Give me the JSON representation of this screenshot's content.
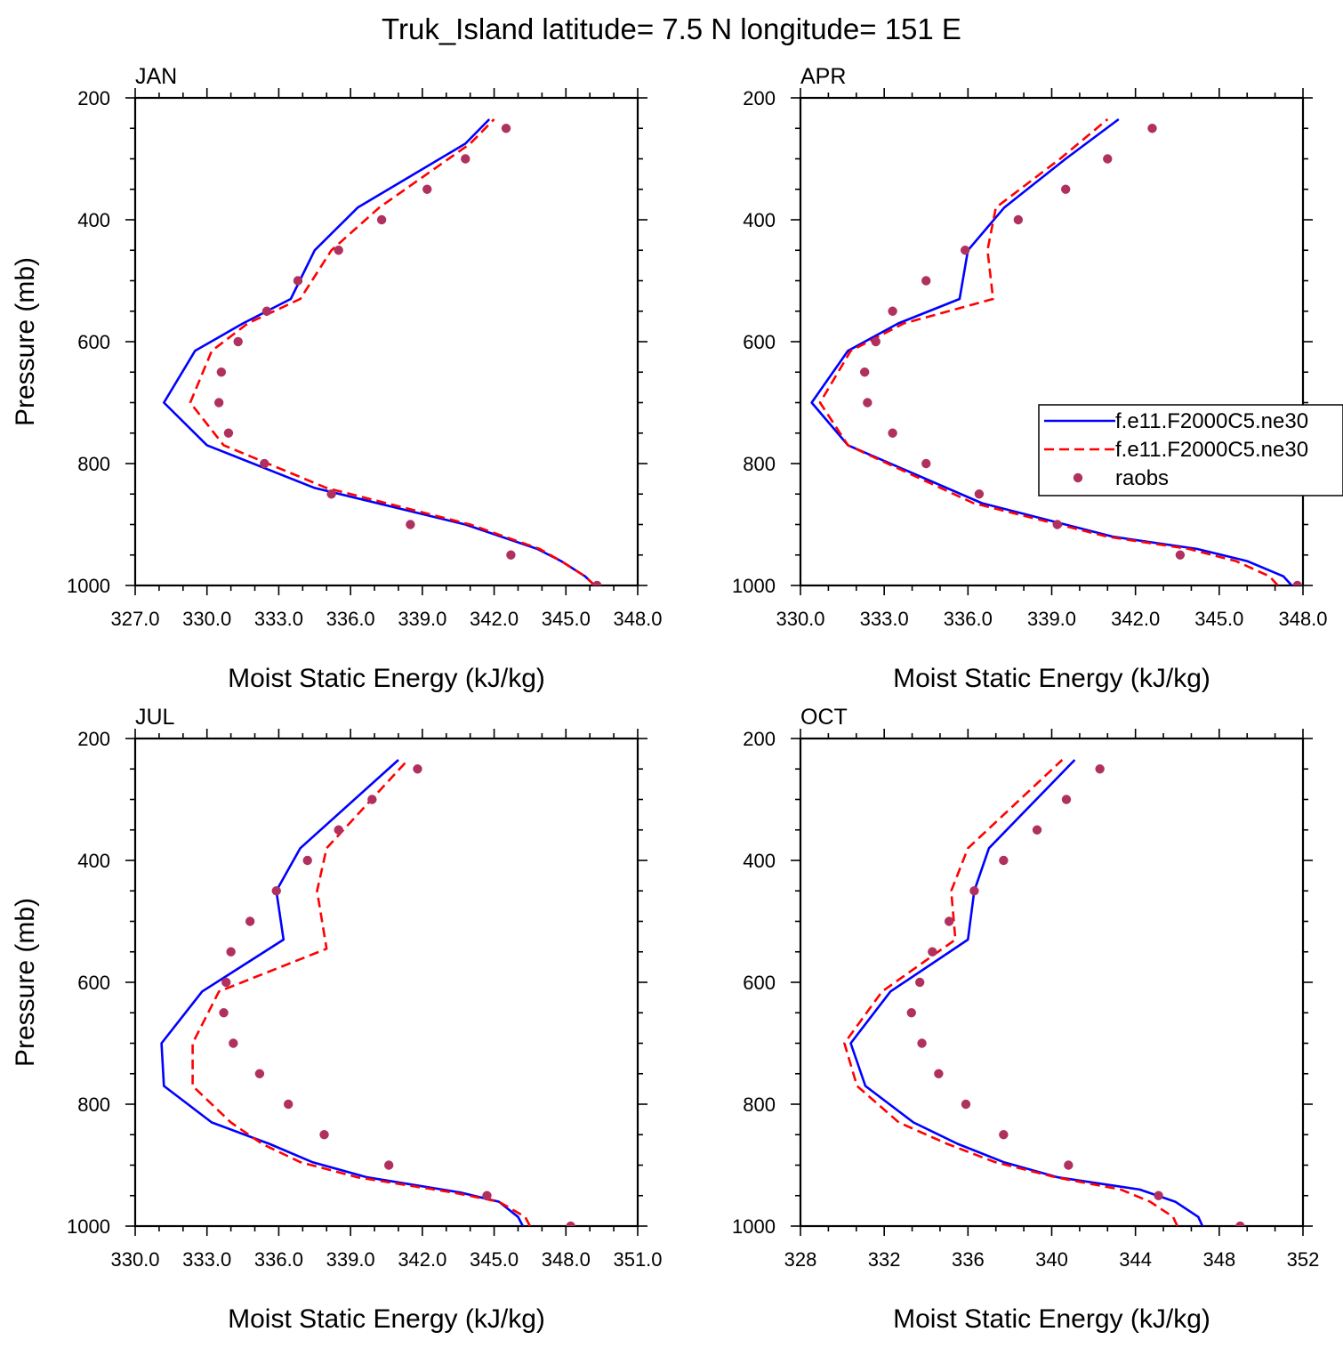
{
  "figure": {
    "title": "Truk_Island  latitude= 7.5 N longitude= 151 E"
  },
  "legend": {
    "entries": [
      {
        "label": "f.e11.F2000C5.ne30",
        "style": "solid",
        "color": "#0000ff"
      },
      {
        "label": "f.e11.F2000C5.ne30",
        "style": "dashed",
        "color": "#ff0000"
      },
      {
        "label": "raobs",
        "style": "marker",
        "color": "#b03060"
      }
    ]
  },
  "colors": {
    "model_solid": "#0000ff",
    "model_dashed": "#ff0000",
    "obs": "#b03060"
  },
  "chart_data": [
    {
      "type": "line",
      "panel_label": "JAN",
      "xlabel": "Moist Static Energy (kJ/kg)",
      "ylabel": "Pressure (mb)",
      "xlim": [
        327,
        348
      ],
      "ylim": [
        200,
        1000
      ],
      "y_inverted": true,
      "xticks": [
        "327.0",
        "330.0",
        "333.0",
        "336.0",
        "339.0",
        "342.0",
        "345.0",
        "348.0"
      ],
      "xtick_values": [
        327,
        330,
        333,
        336,
        339,
        342,
        345,
        348
      ],
      "yticks": [
        "200",
        "400",
        "600",
        "800",
        "1000"
      ],
      "ytick_values": [
        200,
        400,
        600,
        800,
        1000
      ],
      "series": [
        {
          "name": "f.e11.F2000C5.ne30",
          "style": "solid",
          "color": "#0000ff",
          "x": [
            346.2,
            345.8,
            344.8,
            343.8,
            340.8,
            334.5,
            330.0,
            328.2,
            329.5,
            331.5,
            333.5,
            334.5,
            336.3,
            340.8,
            341.8
          ],
          "y": [
            1000,
            985,
            960,
            940,
            900,
            840,
            770,
            700,
            615,
            570,
            530,
            450,
            380,
            275,
            235
          ]
        },
        {
          "name": "f.e11.F2000C5.ne30",
          "style": "dashed",
          "color": "#ff0000",
          "x": [
            346.2,
            345.8,
            344.8,
            343.9,
            341.0,
            335.0,
            330.7,
            329.3,
            330.2,
            331.7,
            333.9,
            335.2,
            337.2,
            341.0,
            342.0
          ],
          "y": [
            1000,
            985,
            960,
            940,
            900,
            840,
            770,
            700,
            615,
            570,
            530,
            450,
            380,
            275,
            235
          ]
        },
        {
          "name": "raobs",
          "style": "marker",
          "color": "#b03060",
          "x": [
            346.3,
            342.7,
            338.5,
            335.2,
            332.4,
            330.9,
            330.5,
            330.6,
            331.3,
            332.5,
            333.8,
            335.5,
            337.3,
            339.2,
            340.8,
            342.5
          ],
          "y": [
            1000,
            950,
            900,
            850,
            800,
            750,
            700,
            650,
            600,
            550,
            500,
            450,
            400,
            350,
            300,
            250
          ]
        }
      ]
    },
    {
      "type": "line",
      "panel_label": "APR",
      "xlabel": "Moist Static Energy (kJ/kg)",
      "ylabel": "",
      "xlim": [
        330,
        348
      ],
      "ylim": [
        200,
        1000
      ],
      "y_inverted": true,
      "xticks": [
        "330.0",
        "333.0",
        "336.0",
        "339.0",
        "342.0",
        "345.0",
        "348.0"
      ],
      "xtick_values": [
        330,
        333,
        336,
        339,
        342,
        345,
        348
      ],
      "yticks": [
        "200",
        "400",
        "600",
        "800",
        "1000"
      ],
      "ytick_values": [
        200,
        400,
        600,
        800,
        1000
      ],
      "series": [
        {
          "name": "f.e11.F2000C5.ne30",
          "style": "solid",
          "color": "#0000ff",
          "x": [
            347.6,
            347.3,
            346.0,
            344.2,
            341.2,
            336.5,
            331.7,
            330.4,
            331.7,
            333.5,
            335.7,
            336.0,
            337.3,
            339.5,
            341.4
          ],
          "y": [
            1000,
            985,
            960,
            940,
            920,
            865,
            770,
            700,
            615,
            570,
            530,
            450,
            380,
            300,
            235
          ]
        },
        {
          "name": "f.e11.F2000C5.ne30",
          "style": "dashed",
          "color": "#ff0000",
          "x": [
            347.1,
            346.8,
            345.6,
            343.9,
            341.0,
            336.2,
            331.7,
            330.7,
            331.8,
            333.7,
            336.9,
            336.7,
            337.0,
            339.3,
            341.0
          ],
          "y": [
            1000,
            985,
            960,
            940,
            920,
            865,
            770,
            700,
            615,
            570,
            530,
            450,
            380,
            300,
            235
          ]
        },
        {
          "name": "raobs",
          "style": "marker",
          "color": "#b03060",
          "x": [
            347.8,
            343.6,
            339.2,
            336.4,
            334.5,
            333.3,
            332.4,
            332.3,
            332.7,
            333.3,
            334.5,
            335.9,
            337.8,
            339.5,
            341.0,
            342.6
          ],
          "y": [
            1000,
            950,
            900,
            850,
            800,
            750,
            700,
            650,
            600,
            550,
            500,
            450,
            400,
            350,
            300,
            250
          ]
        }
      ]
    },
    {
      "type": "line",
      "panel_label": "JUL",
      "xlabel": "Moist Static Energy (kJ/kg)",
      "ylabel": "Pressure (mb)",
      "xlim": [
        330,
        351
      ],
      "ylim": [
        200,
        1000
      ],
      "y_inverted": true,
      "xticks": [
        "330.0",
        "333.0",
        "336.0",
        "339.0",
        "342.0",
        "345.0",
        "348.0",
        "351.0"
      ],
      "xtick_values": [
        330,
        333,
        336,
        339,
        342,
        345,
        348,
        351
      ],
      "yticks": [
        "200",
        "400",
        "600",
        "800",
        "1000"
      ],
      "ytick_values": [
        200,
        400,
        600,
        800,
        1000
      ],
      "series": [
        {
          "name": "f.e11.F2000C5.ne30",
          "style": "solid",
          "color": "#0000ff",
          "x": [
            346.2,
            346.0,
            345.2,
            343.6,
            339.7,
            337.4,
            335.6,
            333.2,
            331.2,
            331.1,
            332.8,
            336.2,
            335.9,
            336.9,
            341.0
          ],
          "y": [
            1000,
            985,
            960,
            945,
            920,
            895,
            865,
            830,
            770,
            700,
            615,
            530,
            450,
            380,
            235
          ]
        },
        {
          "name": "f.e11.F2000C5.ne30",
          "style": "dashed",
          "color": "#ff0000",
          "x": [
            346.5,
            346.3,
            345.2,
            343.3,
            339.3,
            336.9,
            335.3,
            334.0,
            332.4,
            332.4,
            333.5,
            338.0,
            337.6,
            338.0,
            341.4
          ],
          "y": [
            1000,
            985,
            960,
            945,
            920,
            895,
            865,
            830,
            770,
            700,
            615,
            545,
            450,
            380,
            235
          ]
        },
        {
          "name": "raobs",
          "style": "marker",
          "color": "#b03060",
          "x": [
            348.2,
            344.7,
            340.6,
            337.9,
            336.4,
            335.2,
            334.1,
            333.7,
            333.8,
            334.0,
            334.8,
            335.9,
            337.2,
            338.5,
            339.9,
            341.8
          ],
          "y": [
            1000,
            950,
            900,
            850,
            800,
            750,
            700,
            650,
            600,
            550,
            500,
            450,
            400,
            350,
            300,
            250
          ]
        }
      ]
    },
    {
      "type": "line",
      "panel_label": "OCT",
      "xlabel": "Moist Static Energy (kJ/kg)",
      "ylabel": "",
      "xlim": [
        328,
        352
      ],
      "ylim": [
        200,
        1000
      ],
      "y_inverted": true,
      "xticks": [
        "328",
        "332",
        "336",
        "340",
        "344",
        "348",
        "352"
      ],
      "xtick_values": [
        328,
        332,
        336,
        340,
        344,
        348,
        352
      ],
      "yticks": [
        "200",
        "400",
        "600",
        "800",
        "1000"
      ],
      "ytick_values": [
        200,
        400,
        600,
        800,
        1000
      ],
      "series": [
        {
          "name": "f.e11.F2000C5.ne30",
          "style": "solid",
          "color": "#0000ff",
          "x": [
            347.2,
            347.0,
            345.9,
            344.2,
            340.3,
            337.7,
            335.5,
            333.4,
            331.1,
            330.4,
            332.3,
            336.0,
            336.3,
            337.0,
            341.1
          ],
          "y": [
            1000,
            985,
            960,
            940,
            920,
            895,
            865,
            830,
            770,
            700,
            615,
            530,
            450,
            380,
            235
          ]
        },
        {
          "name": "f.e11.F2000C5.ne30",
          "style": "dashed",
          "color": "#ff0000",
          "x": [
            346.0,
            345.8,
            344.7,
            343.3,
            340.2,
            337.3,
            335.0,
            332.7,
            330.7,
            330.1,
            331.9,
            335.4,
            335.2,
            336.0,
            340.5
          ],
          "y": [
            1000,
            985,
            960,
            940,
            920,
            895,
            865,
            830,
            770,
            700,
            615,
            530,
            450,
            380,
            235
          ]
        },
        {
          "name": "raobs",
          "style": "marker",
          "color": "#b03060",
          "x": [
            349.0,
            345.1,
            340.8,
            337.7,
            335.9,
            334.6,
            333.8,
            333.3,
            333.7,
            334.3,
            335.1,
            336.3,
            337.7,
            339.3,
            340.7,
            342.3
          ],
          "y": [
            1000,
            950,
            900,
            850,
            800,
            750,
            700,
            650,
            600,
            550,
            500,
            450,
            400,
            350,
            300,
            250
          ]
        }
      ]
    }
  ]
}
